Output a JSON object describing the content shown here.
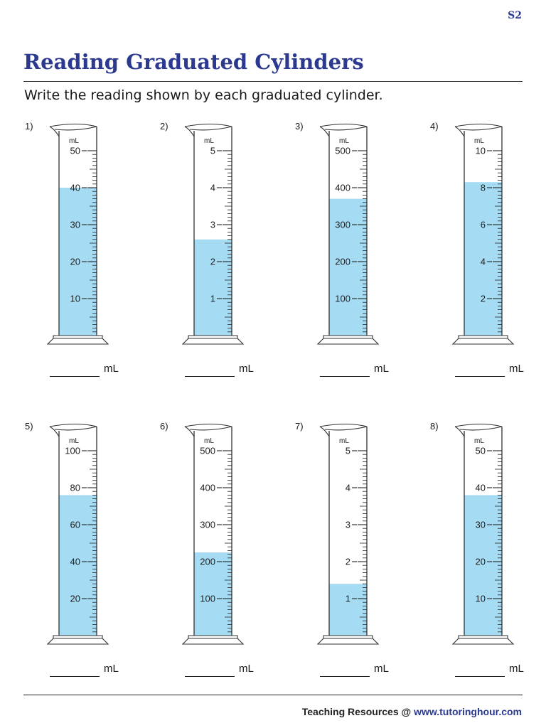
{
  "header": {
    "code": "S2",
    "title": "Reading Graduated Cylinders",
    "instructions": "Write the reading shown by each graduated cylinder."
  },
  "colors": {
    "title": "#2b3990",
    "liquid": "#a6dcf3",
    "glass": "#333333"
  },
  "problems": [
    {
      "number": "1)",
      "unit_label": "mL",
      "max": 50,
      "labels": [
        "50",
        "40",
        "30",
        "20",
        "10"
      ],
      "minor_per_major": 10,
      "fill_fraction": 0.8,
      "answer_unit": "mL"
    },
    {
      "number": "2)",
      "unit_label": "mL",
      "max": 5,
      "labels": [
        "5",
        "4",
        "3",
        "2",
        "1"
      ],
      "minor_per_major": 10,
      "fill_fraction": 0.52,
      "answer_unit": "mL"
    },
    {
      "number": "3)",
      "unit_label": "mL",
      "max": 500,
      "labels": [
        "500",
        "400",
        "300",
        "200",
        "100"
      ],
      "minor_per_major": 10,
      "fill_fraction": 0.74,
      "answer_unit": "mL"
    },
    {
      "number": "4)",
      "unit_label": "mL",
      "max": 10,
      "labels": [
        "10",
        "8",
        "6",
        "4",
        "2"
      ],
      "minor_per_major": 10,
      "fill_fraction": 0.83,
      "answer_unit": "mL"
    },
    {
      "number": "5)",
      "unit_label": "mL",
      "max": 100,
      "labels": [
        "100",
        "80",
        "60",
        "40",
        "20"
      ],
      "minor_per_major": 10,
      "fill_fraction": 0.76,
      "answer_unit": "mL"
    },
    {
      "number": "6)",
      "unit_label": "mL",
      "max": 500,
      "labels": [
        "500",
        "400",
        "300",
        "200",
        "100"
      ],
      "minor_per_major": 10,
      "fill_fraction": 0.45,
      "answer_unit": "mL"
    },
    {
      "number": "7)",
      "unit_label": "mL",
      "max": 5,
      "labels": [
        "5",
        "4",
        "3",
        "2",
        "1"
      ],
      "minor_per_major": 10,
      "fill_fraction": 0.28,
      "answer_unit": "mL"
    },
    {
      "number": "8)",
      "unit_label": "mL",
      "max": 50,
      "labels": [
        "50",
        "40",
        "30",
        "20",
        "10"
      ],
      "minor_per_major": 10,
      "fill_fraction": 0.76,
      "answer_unit": "mL"
    }
  ],
  "footer": {
    "prefix": "Teaching Resources @ ",
    "site": "www.tutoringhour.com"
  }
}
